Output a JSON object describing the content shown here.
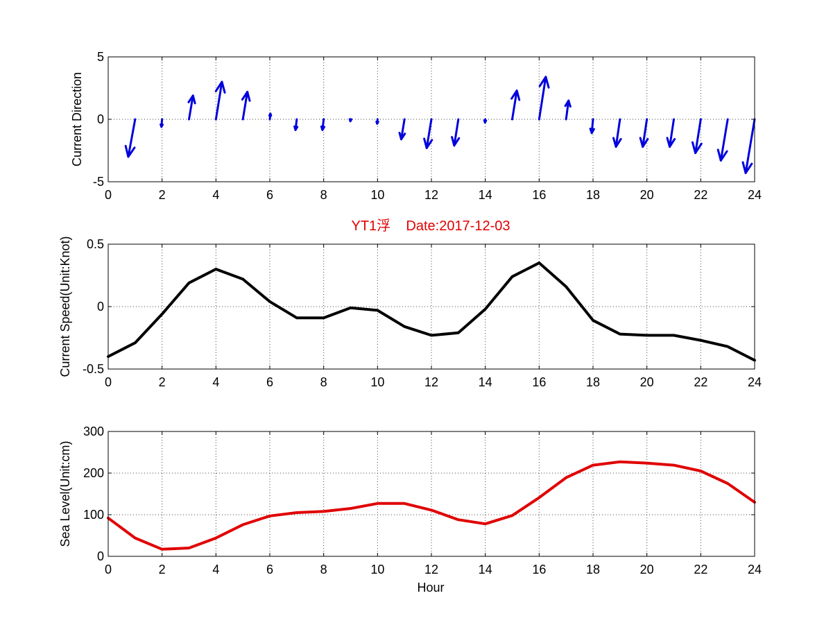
{
  "figure": {
    "title": "YT1浮    Date:2017-12-03",
    "title_color": "#e00000"
  },
  "chart_data": [
    {
      "type": "quiver",
      "ylabel": "Current Direction",
      "xlabel": "",
      "xlim": [
        0,
        24
      ],
      "ylim": [
        -5,
        5
      ],
      "xticks": [
        "0",
        "2",
        "4",
        "6",
        "8",
        "10",
        "12",
        "14",
        "16",
        "18",
        "20",
        "22",
        "24"
      ],
      "yticks": [
        "5",
        "0",
        "-5"
      ],
      "grid": true,
      "color": "#0000dd",
      "vectors": [
        {
          "x": 1,
          "u": -0.55,
          "v": -3.0
        },
        {
          "x": 2,
          "u": -0.05,
          "v": -0.6
        },
        {
          "x": 3,
          "u": 0.32,
          "v": 1.9
        },
        {
          "x": 4,
          "u": 0.48,
          "v": 3.0
        },
        {
          "x": 5,
          "u": 0.36,
          "v": 2.2
        },
        {
          "x": 6,
          "u": 0.05,
          "v": 0.45
        },
        {
          "x": 7,
          "u": -0.1,
          "v": -0.85
        },
        {
          "x": 8,
          "u": -0.1,
          "v": -0.85
        },
        {
          "x": 9,
          "u": -0.02,
          "v": -0.15
        },
        {
          "x": 10,
          "u": -0.03,
          "v": -0.35
        },
        {
          "x": 11,
          "u": -0.26,
          "v": -1.6
        },
        {
          "x": 12,
          "u": -0.38,
          "v": -2.3
        },
        {
          "x": 13,
          "u": -0.33,
          "v": -2.1
        },
        {
          "x": 14,
          "u": -0.02,
          "v": -0.25
        },
        {
          "x": 15,
          "u": 0.37,
          "v": 2.3
        },
        {
          "x": 16,
          "u": 0.53,
          "v": 3.4
        },
        {
          "x": 17,
          "u": 0.2,
          "v": 1.5
        },
        {
          "x": 18,
          "u": -0.1,
          "v": -1.1
        },
        {
          "x": 19,
          "u": -0.32,
          "v": -2.2
        },
        {
          "x": 20,
          "u": -0.33,
          "v": -2.2
        },
        {
          "x": 21,
          "u": -0.33,
          "v": -2.2
        },
        {
          "x": 22,
          "u": -0.43,
          "v": -2.7
        },
        {
          "x": 23,
          "u": -0.55,
          "v": -3.3
        },
        {
          "x": 24,
          "u": -0.72,
          "v": -4.3
        }
      ]
    },
    {
      "type": "line",
      "ylabel": "Current Speed(Unit:Knot)",
      "xlabel": "",
      "xlim": [
        0,
        24
      ],
      "ylim": [
        -0.5,
        0.5
      ],
      "xticks": [
        "0",
        "2",
        "4",
        "6",
        "8",
        "10",
        "12",
        "14",
        "16",
        "18",
        "20",
        "22",
        "24"
      ],
      "yticks": [
        "0.5",
        "0",
        "-0.5"
      ],
      "grid": true,
      "color": "#000000",
      "x": [
        0,
        1,
        2,
        3,
        4,
        5,
        6,
        7,
        8,
        9,
        10,
        11,
        12,
        13,
        14,
        15,
        16,
        17,
        18,
        19,
        20,
        21,
        22,
        23,
        24
      ],
      "values": [
        -0.4,
        -0.29,
        -0.06,
        0.19,
        0.3,
        0.22,
        0.04,
        -0.09,
        -0.09,
        -0.01,
        -0.03,
        -0.16,
        -0.23,
        -0.21,
        -0.02,
        0.24,
        0.35,
        0.16,
        -0.11,
        -0.22,
        -0.23,
        -0.23,
        -0.27,
        -0.32,
        -0.43
      ]
    },
    {
      "type": "line",
      "ylabel": "Sea Level(Unit:cm)",
      "xlabel": "Hour",
      "xlim": [
        0,
        24
      ],
      "ylim": [
        0,
        300
      ],
      "xticks": [
        "0",
        "2",
        "4",
        "6",
        "8",
        "10",
        "12",
        "14",
        "16",
        "18",
        "20",
        "22",
        "24"
      ],
      "yticks": [
        "300",
        "200",
        "100",
        "0"
      ],
      "grid": true,
      "color": "#e00000",
      "x": [
        0,
        1,
        2,
        3,
        4,
        5,
        6,
        7,
        8,
        9,
        10,
        11,
        12,
        13,
        14,
        15,
        16,
        17,
        18,
        19,
        20,
        21,
        22,
        23,
        24
      ],
      "values": [
        92,
        44,
        17,
        20,
        44,
        76,
        97,
        105,
        108,
        115,
        127,
        127,
        111,
        88,
        78,
        98,
        141,
        189,
        219,
        227,
        224,
        219,
        205,
        175,
        130
      ]
    }
  ]
}
